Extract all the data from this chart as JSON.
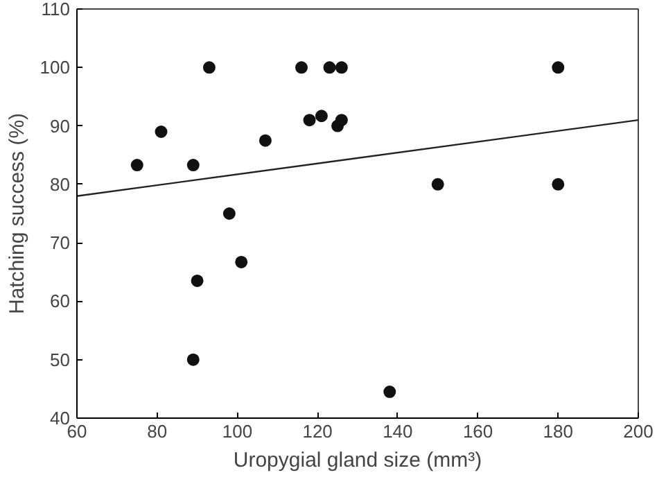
{
  "chart_data": {
    "type": "scatter",
    "xlabel": "Uropygial gland size (mm³)",
    "ylabel": "Hatching success (%)",
    "xlim": [
      60,
      200
    ],
    "ylim": [
      40,
      110
    ],
    "xticks": [
      60,
      80,
      100,
      120,
      140,
      160,
      180,
      200
    ],
    "yticks": [
      40,
      50,
      60,
      70,
      80,
      90,
      100,
      110
    ],
    "grid": false,
    "series": [
      {
        "marker": "circle",
        "color": "#111111",
        "x": [
          75,
          81,
          89,
          89,
          90,
          93,
          98,
          101,
          107,
          116,
          118,
          121,
          123,
          125,
          126,
          126,
          138,
          150,
          180,
          180
        ],
        "values": [
          83.3,
          89,
          83.3,
          50,
          63.5,
          100,
          75,
          66.7,
          87.5,
          100,
          91,
          91.7,
          100,
          90,
          91,
          100,
          44.5,
          80,
          100,
          80
        ]
      },
      {
        "type": "line",
        "color": "#222222",
        "x": [
          60,
          200
        ],
        "values": [
          78,
          91
        ]
      }
    ]
  }
}
